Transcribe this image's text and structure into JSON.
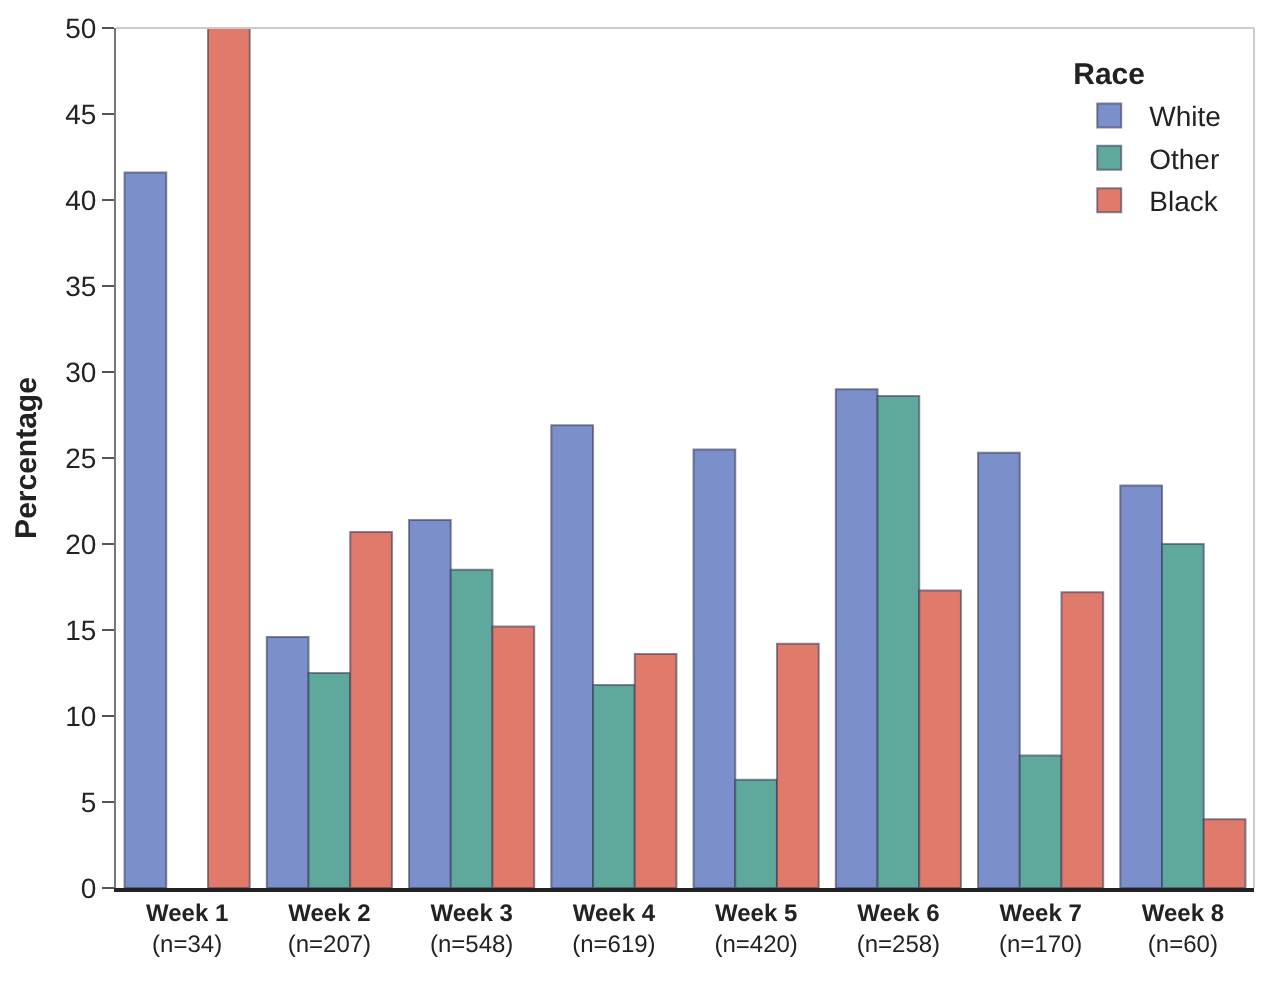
{
  "chart_data": {
    "type": "bar",
    "ylabel": "Percentage",
    "legend_title": "Race",
    "legend": "top right",
    "grid": false,
    "categories": [
      "Week 1\n(n=34)",
      "Week 2\n(n=207)",
      "Week 3\n(n=548)",
      "Week 4\n(n=619)",
      "Week 5\n(n=420)",
      "Week 6\n(n=258)",
      "Week 7\n(n=170)",
      "Week 8\n(n=60)"
    ],
    "ylim": [
      0,
      50
    ],
    "yticks": [
      0,
      5,
      10,
      15,
      20,
      25,
      30,
      35,
      40,
      45,
      50
    ],
    "series": [
      {
        "name": "White",
        "color": "#7b8fcb",
        "values": [
          41.6,
          14.6,
          21.4,
          26.9,
          25.5,
          29.0,
          25.3,
          23.4
        ]
      },
      {
        "name": "Other",
        "color": "#5fa89c",
        "values": [
          null,
          12.5,
          18.5,
          11.8,
          6.3,
          28.6,
          7.7,
          20.0
        ]
      },
      {
        "name": "Black",
        "color": "#e07b6c",
        "values": [
          50,
          20.7,
          15.2,
          13.6,
          14.2,
          17.3,
          17.2,
          4.0
        ]
      }
    ]
  }
}
